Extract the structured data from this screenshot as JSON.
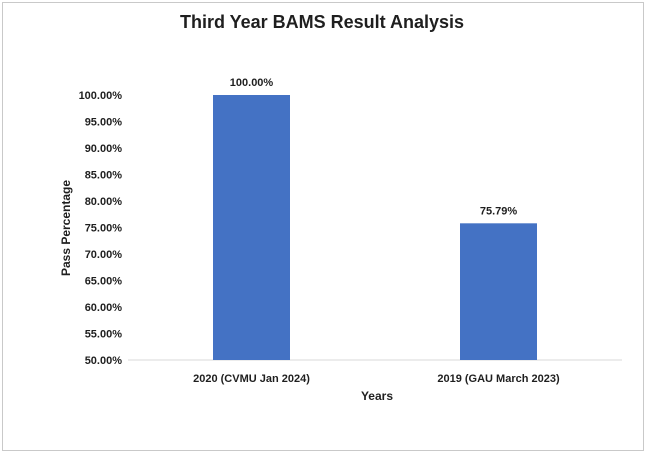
{
  "chart_data": {
    "type": "bar",
    "title": "Third Year BAMS Result Analysis",
    "xlabel": "Years",
    "ylabel": "Pass Percentage",
    "categories": [
      "2020 (CVMU Jan 2024)",
      "2019 (GAU March 2023)"
    ],
    "values": [
      100.0,
      75.79
    ],
    "data_labels": [
      "100.00%",
      "75.79%"
    ],
    "ylim": [
      50,
      100
    ],
    "y_ticks": [
      50,
      55,
      60,
      65,
      70,
      75,
      80,
      85,
      90,
      95,
      100
    ],
    "y_tick_labels": [
      "50.00%",
      "55.00%",
      "60.00%",
      "65.00%",
      "70.00%",
      "75.00%",
      "80.00%",
      "85.00%",
      "90.00%",
      "95.00%",
      "100.00%"
    ],
    "grid": false,
    "legend": "none",
    "bar_color": "#4472C4"
  }
}
